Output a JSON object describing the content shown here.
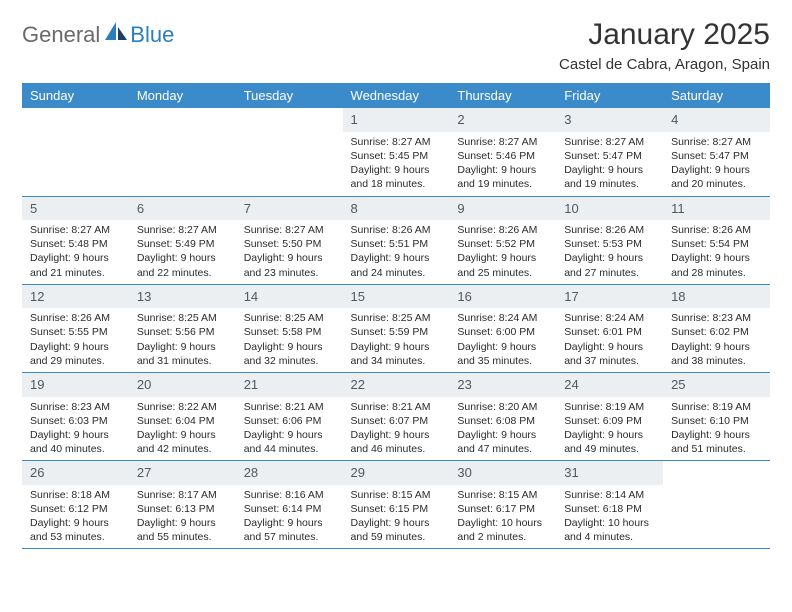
{
  "logo": {
    "general": "General",
    "blue": "Blue"
  },
  "title": "January 2025",
  "subtitle": "Castel de Cabra, Aragon, Spain",
  "colors": {
    "header_bg": "#3b8bcb",
    "header_fg": "#ffffff",
    "daynum_bg": "#eceff1",
    "daynum_fg": "#505860",
    "rule": "#3b8bcb",
    "logo_general": "#6b6b6b",
    "logo_blue": "#2b7fbf"
  },
  "weekdays": [
    "Sunday",
    "Monday",
    "Tuesday",
    "Wednesday",
    "Thursday",
    "Friday",
    "Saturday"
  ],
  "weeks": [
    [
      {
        "empty": true
      },
      {
        "empty": true
      },
      {
        "empty": true
      },
      {
        "day": "1",
        "sunrise": "Sunrise: 8:27 AM",
        "sunset": "Sunset: 5:45 PM",
        "daylight1": "Daylight: 9 hours",
        "daylight2": "and 18 minutes."
      },
      {
        "day": "2",
        "sunrise": "Sunrise: 8:27 AM",
        "sunset": "Sunset: 5:46 PM",
        "daylight1": "Daylight: 9 hours",
        "daylight2": "and 19 minutes."
      },
      {
        "day": "3",
        "sunrise": "Sunrise: 8:27 AM",
        "sunset": "Sunset: 5:47 PM",
        "daylight1": "Daylight: 9 hours",
        "daylight2": "and 19 minutes."
      },
      {
        "day": "4",
        "sunrise": "Sunrise: 8:27 AM",
        "sunset": "Sunset: 5:47 PM",
        "daylight1": "Daylight: 9 hours",
        "daylight2": "and 20 minutes."
      }
    ],
    [
      {
        "day": "5",
        "sunrise": "Sunrise: 8:27 AM",
        "sunset": "Sunset: 5:48 PM",
        "daylight1": "Daylight: 9 hours",
        "daylight2": "and 21 minutes."
      },
      {
        "day": "6",
        "sunrise": "Sunrise: 8:27 AM",
        "sunset": "Sunset: 5:49 PM",
        "daylight1": "Daylight: 9 hours",
        "daylight2": "and 22 minutes."
      },
      {
        "day": "7",
        "sunrise": "Sunrise: 8:27 AM",
        "sunset": "Sunset: 5:50 PM",
        "daylight1": "Daylight: 9 hours",
        "daylight2": "and 23 minutes."
      },
      {
        "day": "8",
        "sunrise": "Sunrise: 8:26 AM",
        "sunset": "Sunset: 5:51 PM",
        "daylight1": "Daylight: 9 hours",
        "daylight2": "and 24 minutes."
      },
      {
        "day": "9",
        "sunrise": "Sunrise: 8:26 AM",
        "sunset": "Sunset: 5:52 PM",
        "daylight1": "Daylight: 9 hours",
        "daylight2": "and 25 minutes."
      },
      {
        "day": "10",
        "sunrise": "Sunrise: 8:26 AM",
        "sunset": "Sunset: 5:53 PM",
        "daylight1": "Daylight: 9 hours",
        "daylight2": "and 27 minutes."
      },
      {
        "day": "11",
        "sunrise": "Sunrise: 8:26 AM",
        "sunset": "Sunset: 5:54 PM",
        "daylight1": "Daylight: 9 hours",
        "daylight2": "and 28 minutes."
      }
    ],
    [
      {
        "day": "12",
        "sunrise": "Sunrise: 8:26 AM",
        "sunset": "Sunset: 5:55 PM",
        "daylight1": "Daylight: 9 hours",
        "daylight2": "and 29 minutes."
      },
      {
        "day": "13",
        "sunrise": "Sunrise: 8:25 AM",
        "sunset": "Sunset: 5:56 PM",
        "daylight1": "Daylight: 9 hours",
        "daylight2": "and 31 minutes."
      },
      {
        "day": "14",
        "sunrise": "Sunrise: 8:25 AM",
        "sunset": "Sunset: 5:58 PM",
        "daylight1": "Daylight: 9 hours",
        "daylight2": "and 32 minutes."
      },
      {
        "day": "15",
        "sunrise": "Sunrise: 8:25 AM",
        "sunset": "Sunset: 5:59 PM",
        "daylight1": "Daylight: 9 hours",
        "daylight2": "and 34 minutes."
      },
      {
        "day": "16",
        "sunrise": "Sunrise: 8:24 AM",
        "sunset": "Sunset: 6:00 PM",
        "daylight1": "Daylight: 9 hours",
        "daylight2": "and 35 minutes."
      },
      {
        "day": "17",
        "sunrise": "Sunrise: 8:24 AM",
        "sunset": "Sunset: 6:01 PM",
        "daylight1": "Daylight: 9 hours",
        "daylight2": "and 37 minutes."
      },
      {
        "day": "18",
        "sunrise": "Sunrise: 8:23 AM",
        "sunset": "Sunset: 6:02 PM",
        "daylight1": "Daylight: 9 hours",
        "daylight2": "and 38 minutes."
      }
    ],
    [
      {
        "day": "19",
        "sunrise": "Sunrise: 8:23 AM",
        "sunset": "Sunset: 6:03 PM",
        "daylight1": "Daylight: 9 hours",
        "daylight2": "and 40 minutes."
      },
      {
        "day": "20",
        "sunrise": "Sunrise: 8:22 AM",
        "sunset": "Sunset: 6:04 PM",
        "daylight1": "Daylight: 9 hours",
        "daylight2": "and 42 minutes."
      },
      {
        "day": "21",
        "sunrise": "Sunrise: 8:21 AM",
        "sunset": "Sunset: 6:06 PM",
        "daylight1": "Daylight: 9 hours",
        "daylight2": "and 44 minutes."
      },
      {
        "day": "22",
        "sunrise": "Sunrise: 8:21 AM",
        "sunset": "Sunset: 6:07 PM",
        "daylight1": "Daylight: 9 hours",
        "daylight2": "and 46 minutes."
      },
      {
        "day": "23",
        "sunrise": "Sunrise: 8:20 AM",
        "sunset": "Sunset: 6:08 PM",
        "daylight1": "Daylight: 9 hours",
        "daylight2": "and 47 minutes."
      },
      {
        "day": "24",
        "sunrise": "Sunrise: 8:19 AM",
        "sunset": "Sunset: 6:09 PM",
        "daylight1": "Daylight: 9 hours",
        "daylight2": "and 49 minutes."
      },
      {
        "day": "25",
        "sunrise": "Sunrise: 8:19 AM",
        "sunset": "Sunset: 6:10 PM",
        "daylight1": "Daylight: 9 hours",
        "daylight2": "and 51 minutes."
      }
    ],
    [
      {
        "day": "26",
        "sunrise": "Sunrise: 8:18 AM",
        "sunset": "Sunset: 6:12 PM",
        "daylight1": "Daylight: 9 hours",
        "daylight2": "and 53 minutes."
      },
      {
        "day": "27",
        "sunrise": "Sunrise: 8:17 AM",
        "sunset": "Sunset: 6:13 PM",
        "daylight1": "Daylight: 9 hours",
        "daylight2": "and 55 minutes."
      },
      {
        "day": "28",
        "sunrise": "Sunrise: 8:16 AM",
        "sunset": "Sunset: 6:14 PM",
        "daylight1": "Daylight: 9 hours",
        "daylight2": "and 57 minutes."
      },
      {
        "day": "29",
        "sunrise": "Sunrise: 8:15 AM",
        "sunset": "Sunset: 6:15 PM",
        "daylight1": "Daylight: 9 hours",
        "daylight2": "and 59 minutes."
      },
      {
        "day": "30",
        "sunrise": "Sunrise: 8:15 AM",
        "sunset": "Sunset: 6:17 PM",
        "daylight1": "Daylight: 10 hours",
        "daylight2": "and 2 minutes."
      },
      {
        "day": "31",
        "sunrise": "Sunrise: 8:14 AM",
        "sunset": "Sunset: 6:18 PM",
        "daylight1": "Daylight: 10 hours",
        "daylight2": "and 4 minutes."
      },
      {
        "empty": true
      }
    ]
  ]
}
